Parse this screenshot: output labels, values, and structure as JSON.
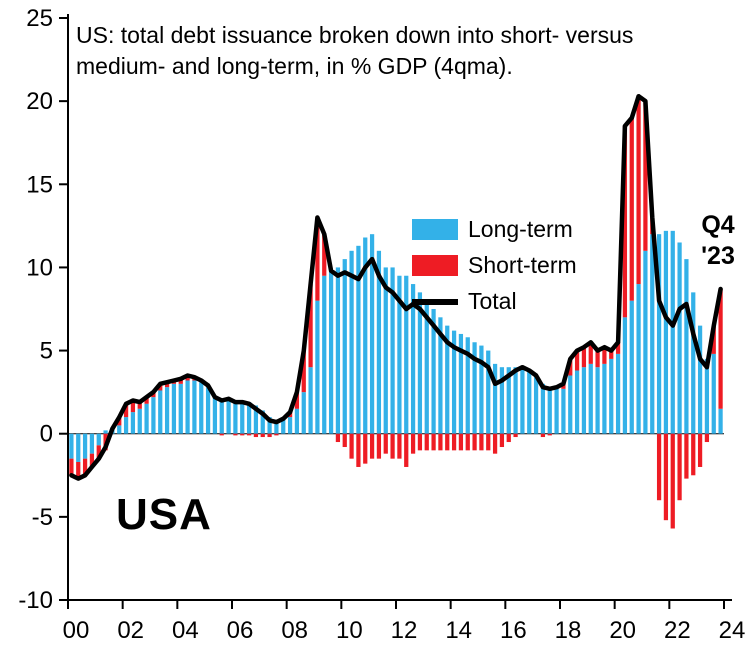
{
  "title": {
    "line1": "US: total debt issuance broken down into short- versus",
    "line2": "medium- and long-term, in % GDP (4qma)."
  },
  "country_label": "USA",
  "annotation": {
    "line1": "Q4",
    "line2": "'23"
  },
  "colors": {
    "long_term": "#33b1e8",
    "short_term": "#ee1c24",
    "total": "#000000",
    "axis": "#000000"
  },
  "legend": [
    {
      "label": "Long-term",
      "type": "box",
      "color": "#33b1e8"
    },
    {
      "label": "Short-term",
      "type": "box",
      "color": "#ee1c24"
    },
    {
      "label": "Total",
      "type": "line",
      "color": "#000000"
    }
  ],
  "chart_data": {
    "type": "bar",
    "stacked": true,
    "title": "US: total debt issuance broken down into short- versus medium- and long-term, in % GDP (4qma).",
    "xlabel": "",
    "ylabel": "% GDP (4qma)",
    "ylim": [
      -10,
      25
    ],
    "grid": false,
    "legend_position": "center",
    "y_ticks": [
      -10,
      -5,
      0,
      5,
      10,
      15,
      20,
      25
    ],
    "x_tick_labels": [
      "00",
      "02",
      "04",
      "06",
      "08",
      "10",
      "12",
      "14",
      "16",
      "18",
      "20",
      "22",
      "24"
    ],
    "x": [
      "2000Q1",
      "2000Q2",
      "2000Q3",
      "2000Q4",
      "2001Q1",
      "2001Q2",
      "2001Q3",
      "2001Q4",
      "2002Q1",
      "2002Q2",
      "2002Q3",
      "2002Q4",
      "2003Q1",
      "2003Q2",
      "2003Q3",
      "2003Q4",
      "2004Q1",
      "2004Q2",
      "2004Q3",
      "2004Q4",
      "2005Q1",
      "2005Q2",
      "2005Q3",
      "2005Q4",
      "2006Q1",
      "2006Q2",
      "2006Q3",
      "2006Q4",
      "2007Q1",
      "2007Q2",
      "2007Q3",
      "2007Q4",
      "2008Q1",
      "2008Q2",
      "2008Q3",
      "2008Q4",
      "2009Q1",
      "2009Q2",
      "2009Q3",
      "2009Q4",
      "2010Q1",
      "2010Q2",
      "2010Q3",
      "2010Q4",
      "2011Q1",
      "2011Q2",
      "2011Q3",
      "2011Q4",
      "2012Q1",
      "2012Q2",
      "2012Q3",
      "2012Q4",
      "2013Q1",
      "2013Q2",
      "2013Q3",
      "2013Q4",
      "2014Q1",
      "2014Q2",
      "2014Q3",
      "2014Q4",
      "2015Q1",
      "2015Q2",
      "2015Q3",
      "2015Q4",
      "2016Q1",
      "2016Q2",
      "2016Q3",
      "2016Q4",
      "2017Q1",
      "2017Q2",
      "2017Q3",
      "2017Q4",
      "2018Q1",
      "2018Q2",
      "2018Q3",
      "2018Q4",
      "2019Q1",
      "2019Q2",
      "2019Q3",
      "2019Q4",
      "2020Q1",
      "2020Q2",
      "2020Q3",
      "2020Q4",
      "2021Q1",
      "2021Q2",
      "2021Q3",
      "2021Q4",
      "2022Q1",
      "2022Q2",
      "2022Q3",
      "2022Q4",
      "2023Q1",
      "2023Q2",
      "2023Q3",
      "2023Q4"
    ],
    "series": [
      {
        "name": "Long-term",
        "color": "#33b1e8",
        "values": [
          -1.5,
          -1.7,
          -1.5,
          -1.2,
          -0.7,
          0.2,
          0.3,
          0.5,
          1.0,
          1.3,
          1.5,
          1.8,
          2.2,
          2.6,
          2.8,
          3.0,
          3.0,
          3.2,
          3.2,
          3.1,
          2.8,
          2.2,
          2.1,
          2.0,
          2.0,
          2.0,
          1.9,
          1.7,
          1.4,
          1.0,
          0.8,
          0.9,
          1.0,
          1.5,
          2.5,
          4.0,
          8.0,
          9.5,
          9.8,
          10.0,
          10.5,
          11.0,
          11.3,
          11.8,
          12.0,
          11.0,
          10.0,
          10.0,
          9.5,
          9.5,
          9.0,
          8.5,
          8.0,
          7.5,
          7.0,
          6.5,
          6.2,
          6.0,
          5.8,
          5.5,
          5.3,
          5.0,
          4.2,
          4.0,
          4.0,
          4.0,
          4.0,
          3.8,
          3.5,
          3.0,
          2.8,
          2.7,
          2.7,
          3.5,
          3.8,
          4.0,
          4.2,
          4.0,
          4.2,
          4.5,
          4.8,
          7.0,
          8.0,
          9.0,
          11.0,
          12.0,
          12.0,
          12.2,
          12.2,
          11.5,
          10.5,
          8.5,
          6.5,
          4.5,
          4.8,
          1.5
        ]
      },
      {
        "name": "Short-term",
        "color": "#ee1c24",
        "values": [
          -1.0,
          -1.0,
          -1.0,
          -0.8,
          -0.8,
          -1.0,
          0.0,
          0.5,
          0.8,
          0.7,
          0.4,
          0.4,
          0.3,
          0.4,
          0.3,
          0.2,
          0.3,
          0.3,
          0.2,
          0.1,
          0.1,
          0.0,
          -0.1,
          0.1,
          -0.1,
          -0.1,
          -0.1,
          -0.2,
          -0.2,
          -0.2,
          -0.1,
          0.0,
          0.3,
          1.0,
          2.5,
          5.0,
          5.0,
          2.5,
          0.0,
          -0.5,
          -0.8,
          -1.5,
          -2.0,
          -1.8,
          -1.5,
          -1.5,
          -1.2,
          -1.5,
          -1.5,
          -2.0,
          -1.2,
          -1.0,
          -1.0,
          -1.0,
          -1.0,
          -1.0,
          -1.0,
          -1.0,
          -1.0,
          -1.0,
          -1.0,
          -1.0,
          -1.2,
          -0.8,
          -0.5,
          -0.2,
          0.0,
          0.0,
          0.0,
          -0.2,
          -0.1,
          0.1,
          0.3,
          1.0,
          1.2,
          1.2,
          1.3,
          1.0,
          1.0,
          0.5,
          0.7,
          11.5,
          11.0,
          11.3,
          9.0,
          1.0,
          -4.0,
          -5.2,
          -5.7,
          -4.0,
          -2.7,
          -2.5,
          -2.0,
          -0.5,
          1.7,
          7.2
        ]
      },
      {
        "name": "Total",
        "color": "#000000",
        "values": [
          -2.5,
          -2.7,
          -2.5,
          -2.0,
          -1.5,
          -0.8,
          0.3,
          1.0,
          1.8,
          2.0,
          1.9,
          2.2,
          2.5,
          3.0,
          3.1,
          3.2,
          3.3,
          3.5,
          3.4,
          3.2,
          2.9,
          2.2,
          2.0,
          2.1,
          1.9,
          1.9,
          1.8,
          1.5,
          1.2,
          0.8,
          0.7,
          0.9,
          1.3,
          2.5,
          5.0,
          9.0,
          13.0,
          12.0,
          9.8,
          9.5,
          9.7,
          9.5,
          9.3,
          10.0,
          10.5,
          9.5,
          8.8,
          8.5,
          8.0,
          7.5,
          7.8,
          7.5,
          7.0,
          6.5,
          6.0,
          5.5,
          5.2,
          5.0,
          4.8,
          4.5,
          4.3,
          4.0,
          3.0,
          3.2,
          3.5,
          3.8,
          4.0,
          3.8,
          3.5,
          2.8,
          2.7,
          2.8,
          3.0,
          4.5,
          5.0,
          5.2,
          5.5,
          5.0,
          5.2,
          5.0,
          5.5,
          18.5,
          19.0,
          20.3,
          20.0,
          13.0,
          8.0,
          7.0,
          6.5,
          7.5,
          7.8,
          6.0,
          4.5,
          4.0,
          6.5,
          8.7
        ]
      }
    ]
  }
}
